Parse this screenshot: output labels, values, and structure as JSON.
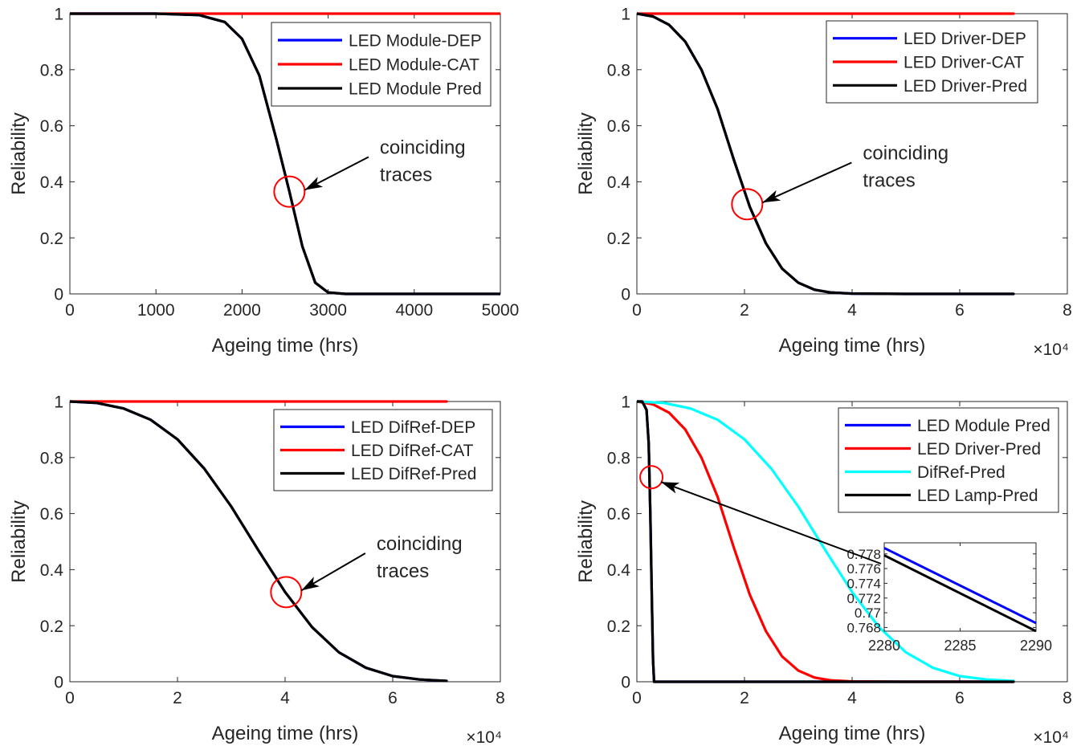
{
  "chart_data": [
    {
      "type": "line",
      "xlabel": "Ageing time (hrs)",
      "ylabel": "Reliability",
      "xlim": [
        0,
        5000
      ],
      "ylim": [
        0,
        1
      ],
      "xticks": [
        0,
        1000,
        2000,
        3000,
        4000,
        5000
      ],
      "xtick_labels": [
        "0",
        "1000",
        "2000",
        "3000",
        "4000",
        "5000"
      ],
      "yticks": [
        0,
        0.2,
        0.4,
        0.6,
        0.8,
        1
      ],
      "ytick_labels": [
        "0",
        "0.2",
        "0.4",
        "0.6",
        "0.8",
        "1"
      ],
      "x_exponent_label": "",
      "legend_position": "top-right",
      "legend": [
        "LED Module-DEP",
        "LED Module-CAT",
        "LED Module Pred"
      ],
      "annotation": {
        "lines": [
          "coinciding",
          "traces"
        ],
        "circle_at": [
          2550,
          0.365
        ],
        "text_at": [
          3600,
          0.5
        ]
      },
      "series": [
        {
          "name": "LED Module-DEP",
          "color": "#0000ff",
          "x": [
            0,
            1000,
            1500,
            1800,
            2000,
            2200,
            2400,
            2550,
            2700,
            2850,
            3000,
            3200,
            5000
          ],
          "y": [
            1,
            1,
            0.995,
            0.97,
            0.91,
            0.78,
            0.55,
            0.365,
            0.17,
            0.04,
            0.005,
            0,
            0
          ]
        },
        {
          "name": "LED Module-CAT",
          "color": "#ff0000",
          "x": [
            0,
            5000
          ],
          "y": [
            1,
            1
          ]
        },
        {
          "name": "LED Module Pred",
          "color": "#000000",
          "x": [
            0,
            1000,
            1500,
            1800,
            2000,
            2200,
            2400,
            2550,
            2700,
            2850,
            3000,
            3200,
            5000
          ],
          "y": [
            1,
            1,
            0.995,
            0.97,
            0.91,
            0.78,
            0.55,
            0.365,
            0.17,
            0.04,
            0.005,
            0,
            0
          ]
        }
      ]
    },
    {
      "type": "line",
      "xlabel": "Ageing time (hrs)",
      "ylabel": "Reliability",
      "xlim": [
        0,
        8
      ],
      "ylim": [
        0,
        1
      ],
      "xticks": [
        0,
        2,
        4,
        6,
        8
      ],
      "xtick_labels": [
        "0",
        "2",
        "4",
        "6",
        "8"
      ],
      "yticks": [
        0,
        0.2,
        0.4,
        0.6,
        0.8,
        1
      ],
      "ytick_labels": [
        "0",
        "0.2",
        "0.4",
        "0.6",
        "0.8",
        "1"
      ],
      "x_exponent_label": "×10⁴",
      "legend_position": "top-right",
      "legend": [
        "LED Driver-DEP",
        "LED Driver-CAT",
        "LED Driver-Pred"
      ],
      "annotation": {
        "lines": [
          "coinciding",
          "traces"
        ],
        "circle_at": [
          2.05,
          0.32
        ],
        "text_at": [
          4.2,
          0.48
        ]
      },
      "series": [
        {
          "name": "LED Driver-DEP",
          "color": "#0000ff",
          "x": [
            0,
            0.3,
            0.6,
            0.9,
            1.2,
            1.5,
            1.8,
            2.1,
            2.4,
            2.7,
            3.0,
            3.3,
            3.6,
            4.0,
            5.0,
            7.0
          ],
          "y": [
            1,
            0.99,
            0.96,
            0.9,
            0.8,
            0.66,
            0.48,
            0.31,
            0.18,
            0.09,
            0.04,
            0.015,
            0.005,
            0.001,
            0,
            0
          ]
        },
        {
          "name": "LED Driver-CAT",
          "color": "#ff0000",
          "x": [
            0,
            7.0
          ],
          "y": [
            1,
            1
          ]
        },
        {
          "name": "LED Driver-Pred",
          "color": "#000000",
          "x": [
            0,
            0.3,
            0.6,
            0.9,
            1.2,
            1.5,
            1.8,
            2.1,
            2.4,
            2.7,
            3.0,
            3.3,
            3.6,
            4.0,
            5.0,
            7.0
          ],
          "y": [
            1,
            0.99,
            0.96,
            0.9,
            0.8,
            0.66,
            0.48,
            0.31,
            0.18,
            0.09,
            0.04,
            0.015,
            0.005,
            0.001,
            0,
            0
          ]
        }
      ]
    },
    {
      "type": "line",
      "xlabel": "Ageing time (hrs)",
      "ylabel": "Reliability",
      "xlim": [
        0,
        8
      ],
      "ylim": [
        0,
        1
      ],
      "xticks": [
        0,
        2,
        4,
        6,
        8
      ],
      "xtick_labels": [
        "0",
        "2",
        "4",
        "6",
        "8"
      ],
      "yticks": [
        0,
        0.2,
        0.4,
        0.6,
        0.8,
        1
      ],
      "ytick_labels": [
        "0",
        "0.2",
        "0.4",
        "0.6",
        "0.8",
        "1"
      ],
      "x_exponent_label": "×10⁴",
      "legend_position": "top-right",
      "legend": [
        "LED DifRef-DEP",
        "LED DifRef-CAT",
        "LED DifRef-Pred"
      ],
      "annotation": {
        "lines": [
          "coinciding",
          "traces"
        ],
        "circle_at": [
          4.02,
          0.32
        ],
        "text_at": [
          5.7,
          0.47
        ]
      },
      "series": [
        {
          "name": "LED DifRef-DEP",
          "color": "#0000ff",
          "x": [
            0,
            0.5,
            1.0,
            1.5,
            2.0,
            2.5,
            3.0,
            3.5,
            4.0,
            4.5,
            5.0,
            5.5,
            6.0,
            6.5,
            7.0
          ],
          "y": [
            1,
            0.995,
            0.975,
            0.935,
            0.865,
            0.76,
            0.625,
            0.47,
            0.32,
            0.195,
            0.105,
            0.05,
            0.02,
            0.008,
            0.003
          ]
        },
        {
          "name": "LED DifRef-CAT",
          "color": "#ff0000",
          "x": [
            0,
            7.0
          ],
          "y": [
            1,
            1
          ]
        },
        {
          "name": "LED DifRef-Pred",
          "color": "#000000",
          "x": [
            0,
            0.5,
            1.0,
            1.5,
            2.0,
            2.5,
            3.0,
            3.5,
            4.0,
            4.5,
            5.0,
            5.5,
            6.0,
            6.5,
            7.0
          ],
          "y": [
            1,
            0.995,
            0.975,
            0.935,
            0.865,
            0.76,
            0.625,
            0.47,
            0.32,
            0.195,
            0.105,
            0.05,
            0.02,
            0.008,
            0.003
          ]
        }
      ]
    },
    {
      "type": "line",
      "xlabel": "Ageing time (hrs)",
      "ylabel": "Reliability",
      "xlim": [
        0,
        8
      ],
      "ylim": [
        0,
        1
      ],
      "xticks": [
        0,
        2,
        4,
        6,
        8
      ],
      "xtick_labels": [
        "0",
        "2",
        "4",
        "6",
        "8"
      ],
      "yticks": [
        0,
        0.2,
        0.4,
        0.6,
        0.8,
        1
      ],
      "ytick_labels": [
        "0",
        "0.2",
        "0.4",
        "0.6",
        "0.8",
        "1"
      ],
      "x_exponent_label": "×10⁴",
      "legend_position": "top-right",
      "legend": [
        "LED Module Pred",
        "LED Driver-Pred",
        "DifRef-Pred",
        "LED Lamp-Pred"
      ],
      "annotation": {
        "circle_at": [
          0.27,
          0.73
        ]
      },
      "series": [
        {
          "name": "LED Module Pred",
          "color": "#0000ff",
          "x": [
            0,
            0.1,
            0.18,
            0.22,
            0.25,
            0.28,
            0.3,
            0.32,
            7.0
          ],
          "y": [
            1,
            1,
            0.97,
            0.85,
            0.6,
            0.28,
            0.08,
            0,
            0
          ]
        },
        {
          "name": "LED Driver-Pred",
          "color": "#ff0000",
          "x": [
            0,
            0.3,
            0.6,
            0.9,
            1.2,
            1.5,
            1.8,
            2.1,
            2.4,
            2.7,
            3.0,
            3.3,
            3.6,
            4.0,
            5.0,
            7.0
          ],
          "y": [
            1,
            0.99,
            0.96,
            0.9,
            0.8,
            0.66,
            0.48,
            0.31,
            0.18,
            0.09,
            0.04,
            0.015,
            0.005,
            0.001,
            0,
            0
          ]
        },
        {
          "name": "DifRef-Pred",
          "color": "#00ffff",
          "x": [
            0,
            0.5,
            1.0,
            1.5,
            2.0,
            2.5,
            3.0,
            3.5,
            4.0,
            4.5,
            5.0,
            5.5,
            6.0,
            6.5,
            7.0
          ],
          "y": [
            1,
            0.995,
            0.975,
            0.935,
            0.865,
            0.76,
            0.625,
            0.47,
            0.32,
            0.195,
            0.105,
            0.05,
            0.02,
            0.008,
            0.003
          ]
        },
        {
          "name": "LED Lamp-Pred",
          "color": "#000000",
          "x": [
            0,
            0.1,
            0.18,
            0.22,
            0.25,
            0.28,
            0.3,
            0.32,
            7.0
          ],
          "y": [
            1,
            1,
            0.97,
            0.85,
            0.6,
            0.28,
            0.08,
            0,
            0
          ]
        }
      ],
      "inset": {
        "xlim": [
          2280,
          2290
        ],
        "ylim": [
          0.7675,
          0.7795
        ],
        "xticks": [
          2280,
          2285,
          2290
        ],
        "xtick_labels": [
          "2280",
          "2285",
          "2290"
        ],
        "yticks": [
          0.768,
          0.77,
          0.772,
          0.774,
          0.776,
          0.778
        ],
        "ytick_labels": [
          "0.768",
          "0.77",
          "0.772",
          "0.774",
          "0.776",
          "0.778"
        ],
        "series": [
          {
            "name": "LED Module Pred",
            "color": "#0000ff",
            "x": [
              2280,
              2290
            ],
            "y": [
              0.7788,
              0.7686
            ]
          },
          {
            "name": "LED Lamp-Pred",
            "color": "#000000",
            "x": [
              2280,
              2290
            ],
            "y": [
              0.7778,
              0.7675
            ]
          }
        ]
      }
    }
  ]
}
